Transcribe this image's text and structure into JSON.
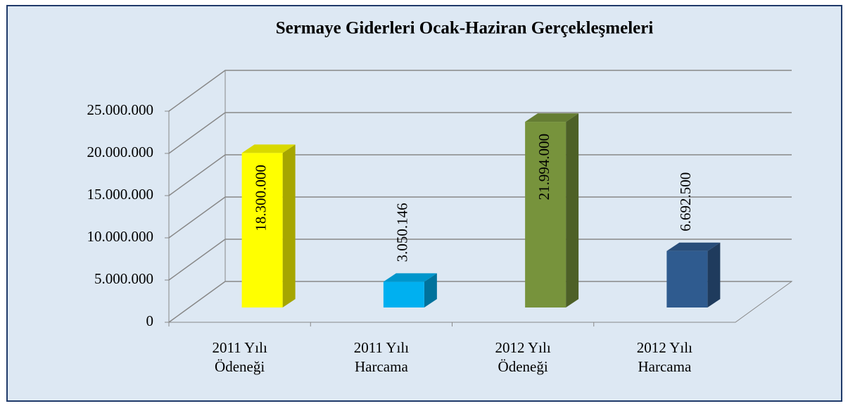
{
  "chart_data": {
    "type": "bar3d",
    "title": "Sermaye Giderleri Ocak-Haziran Gerçekleşmeleri",
    "categories": [
      [
        "2011 Yılı",
        "Ödeneği"
      ],
      [
        "2011 Yılı",
        "Harcama"
      ],
      [
        "2012 Yılı",
        "Ödeneği"
      ],
      [
        "2012 Yılı",
        "Harcama"
      ]
    ],
    "values": [
      18300000,
      3050146,
      21994000,
      6692500
    ],
    "value_labels": [
      "18.300.000",
      "3.050.146",
      "21.994.000",
      "6.692.500"
    ],
    "colors": [
      "#ffff00",
      "#00b0f0",
      "#77933c",
      "#2f5b8f"
    ],
    "ylim": [
      0,
      25000000
    ],
    "yticks": [
      0,
      {
        "value": 5000000,
        "label": "5.000.000"
      },
      {
        "value": 10000000,
        "label": "10.000.000"
      },
      {
        "value": 15000000,
        "label": "15.000.000"
      },
      {
        "value": 20000000,
        "label": "20.000.000"
      },
      {
        "value": 25000000,
        "label": "25.000.000"
      }
    ],
    "grid": true
  }
}
